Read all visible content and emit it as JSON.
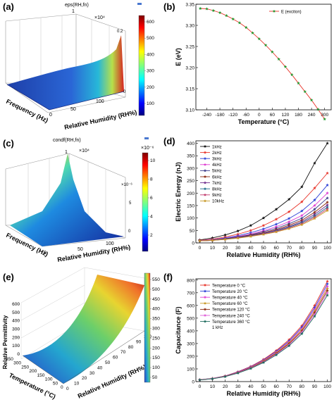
{
  "panels": {
    "a": {
      "label": "(a)",
      "title": "eps(RH,fn)",
      "exponent": "×10⁴",
      "zmax": "1",
      "cbar_ticks": [
        "600",
        "500",
        "400",
        "300",
        "200",
        "100"
      ],
      "ztick_labels": [
        "0.2",
        "0"
      ],
      "rh_ticks": [
        "100",
        "50",
        "0"
      ],
      "xlabel": "Frequency (Hz)",
      "ylabel": "Relative Humidity (RH%)"
    },
    "c": {
      "label": "(c)",
      "title": "condf(RH,fn)",
      "exponent": "×10⁴",
      "zmax": "1",
      "cbar_exponent": "×10⁻⁶",
      "cbar_ticks": [
        "10",
        "8",
        "6",
        "4",
        "2"
      ],
      "side_ticks": [
        "5",
        "×10⁻⁶",
        "0"
      ],
      "rh_ticks": [
        "100",
        "50",
        "0"
      ],
      "xlabel": "Frequency (Hz)",
      "ylabel": "Relative Humidity (RH%)"
    },
    "e": {
      "label": "(e)",
      "zlabel": "Relative Permittivity",
      "z_ticks": [
        "600",
        "500",
        "400",
        "300",
        "200",
        "100",
        "0"
      ],
      "t_ticks": [
        "350",
        "300",
        "250",
        "200",
        "150",
        "100",
        "50",
        "0"
      ],
      "rh_ticks": [
        "0",
        "10",
        "20",
        "30",
        "40",
        "50",
        "60",
        "70",
        "80",
        "90",
        "100"
      ],
      "cbar_ticks": [
        "550",
        "500",
        "450",
        "400",
        "350",
        "300",
        "250",
        "200",
        "150",
        "100",
        "50"
      ],
      "xlabel": "Temperature (°C)",
      "ylabel": "Relative Humidity (RH%)"
    },
    "b": {
      "label": "(b)"
    },
    "d": {
      "label": "(d)"
    },
    "f": {
      "label": "(f)",
      "note": "1 kHz"
    }
  },
  "chart_data": [
    {
      "id": "b",
      "type": "line",
      "x": [
        -270,
        -240,
        -210,
        -180,
        -150,
        -120,
        -90,
        -60,
        -30,
        0,
        30,
        60,
        90,
        120,
        150,
        180,
        210,
        240,
        270,
        300
      ],
      "series": [
        {
          "name": "E (exciton)",
          "color": "#e8352b",
          "marker_color": "#1f9a2e",
          "values": [
            3.34,
            3.339,
            3.335,
            3.33,
            3.323,
            3.315,
            3.306,
            3.295,
            3.282,
            3.268,
            3.253,
            3.237,
            3.22,
            3.202,
            3.183,
            3.163,
            3.143,
            3.123,
            3.101,
            3.078
          ]
        }
      ],
      "xlabel": "Temperature (°C)",
      "ylabel": "E (eV)",
      "xlim": [
        -290,
        330
      ],
      "ylim": [
        3.1,
        3.35
      ],
      "xticks": [
        "-240",
        "-180",
        "-120",
        "-60",
        "0",
        "60",
        "120",
        "180",
        "240",
        "300"
      ],
      "yticks": [
        "3.10",
        "3.15",
        "3.20",
        "3.25",
        "3.30",
        "3.35"
      ],
      "legend": "top-right"
    },
    {
      "id": "d",
      "type": "line",
      "x": [
        0,
        10,
        20,
        30,
        40,
        50,
        60,
        70,
        80,
        90,
        100
      ],
      "series": [
        {
          "name": "1kHz",
          "color": "#111111",
          "values": [
            12,
            20,
            32,
            48,
            70,
            100,
            135,
            175,
            225,
            320,
            400
          ]
        },
        {
          "name": "2kHz",
          "color": "#e8352b",
          "values": [
            10,
            15,
            24,
            35,
            50,
            70,
            95,
            125,
            165,
            220,
            280
          ]
        },
        {
          "name": "3kHz",
          "color": "#2a3fd6",
          "values": [
            9,
            13,
            20,
            29,
            41,
            56,
            75,
            98,
            128,
            172,
            232
          ]
        },
        {
          "name": "4kHz",
          "color": "#e03fd2",
          "values": [
            9,
            12,
            18,
            26,
            36,
            49,
            65,
            85,
            110,
            150,
            200
          ]
        },
        {
          "name": "5kHz",
          "color": "#3c3c8a",
          "values": [
            8,
            11,
            17,
            24,
            33,
            45,
            59,
            77,
            99,
            135,
            180
          ]
        },
        {
          "name": "6kHz",
          "color": "#8b2a12",
          "values": [
            8,
            11,
            16,
            22,
            31,
            41,
            54,
            71,
            91,
            123,
            163
          ]
        },
        {
          "name": "7kHz",
          "color": "#6e2a8c",
          "values": [
            8,
            10,
            15,
            21,
            29,
            39,
            51,
            66,
            85,
            115,
            152
          ]
        },
        {
          "name": "8kHz",
          "color": "#1c6b8c",
          "values": [
            8,
            10,
            15,
            21,
            28,
            37,
            48,
            63,
            81,
            108,
            143
          ]
        },
        {
          "name": "9kHz",
          "color": "#c13c6e",
          "values": [
            8,
            10,
            14,
            20,
            27,
            36,
            46,
            60,
            77,
            103,
            136
          ]
        },
        {
          "name": "10kHz",
          "color": "#c89a2a",
          "values": [
            8,
            10,
            14,
            19,
            26,
            34,
            44,
            57,
            73,
            98,
            130
          ]
        }
      ],
      "xlabel": "Relative Humidity (RH%)",
      "ylabel": "Electric Energy (nJ)",
      "xlim": [
        -3,
        103
      ],
      "ylim": [
        0,
        410
      ],
      "xticks": [
        "0",
        "10",
        "20",
        "30",
        "40",
        "50",
        "60",
        "70",
        "80",
        "90",
        "100"
      ],
      "yticks": [
        "0",
        "50",
        "100",
        "150",
        "200",
        "250",
        "300",
        "350",
        "400"
      ],
      "legend": "top-left"
    },
    {
      "id": "f",
      "type": "line",
      "x": [
        0,
        10,
        20,
        30,
        40,
        50,
        60,
        70,
        80,
        90,
        100
      ],
      "series": [
        {
          "name": "Temperature 0 °C",
          "color": "#e8352b",
          "values": [
            15,
            25,
            45,
            78,
            120,
            175,
            245,
            330,
            440,
            600,
            790
          ]
        },
        {
          "name": "Temperature 20 °C",
          "color": "#2a3fd6",
          "values": [
            15,
            25,
            44,
            76,
            117,
            170,
            238,
            320,
            428,
            583,
            770
          ]
        },
        {
          "name": "Temperature 40 °C",
          "color": "#e03fd2",
          "values": [
            14,
            24,
            43,
            74,
            114,
            166,
            232,
            312,
            417,
            568,
            750
          ]
        },
        {
          "name": "Temperature 60 °C",
          "color": "#c89a2a",
          "values": [
            14,
            24,
            42,
            72,
            111,
            162,
            227,
            305,
            407,
            555,
            733
          ]
        },
        {
          "name": "Temperature 120 °C",
          "color": "#8b2a12",
          "values": [
            14,
            23,
            41,
            71,
            109,
            158,
            222,
            298,
            398,
            542,
            716
          ]
        },
        {
          "name": "Temperature 240 °C",
          "color": "#e060d8",
          "values": [
            13,
            23,
            40,
            69,
            106,
            154,
            216,
            290,
            388,
            528,
            698
          ]
        },
        {
          "name": "Temperature 360 °C",
          "color": "#1c6b5c",
          "values": [
            13,
            22,
            39,
            67,
            103,
            150,
            210,
            282,
            377,
            514,
            680
          ]
        }
      ],
      "xlabel": "Relative Humidity (RH%)",
      "ylabel": "Capacitance (F)",
      "xlim": [
        -3,
        103
      ],
      "ylim": [
        0,
        810
      ],
      "xticks": [
        "0",
        "10",
        "20",
        "30",
        "40",
        "50",
        "60",
        "70",
        "80",
        "90",
        "100"
      ],
      "yticks": [
        "0",
        "100",
        "200",
        "300",
        "400",
        "500",
        "600",
        "700",
        "800"
      ],
      "legend": "top-left"
    }
  ]
}
